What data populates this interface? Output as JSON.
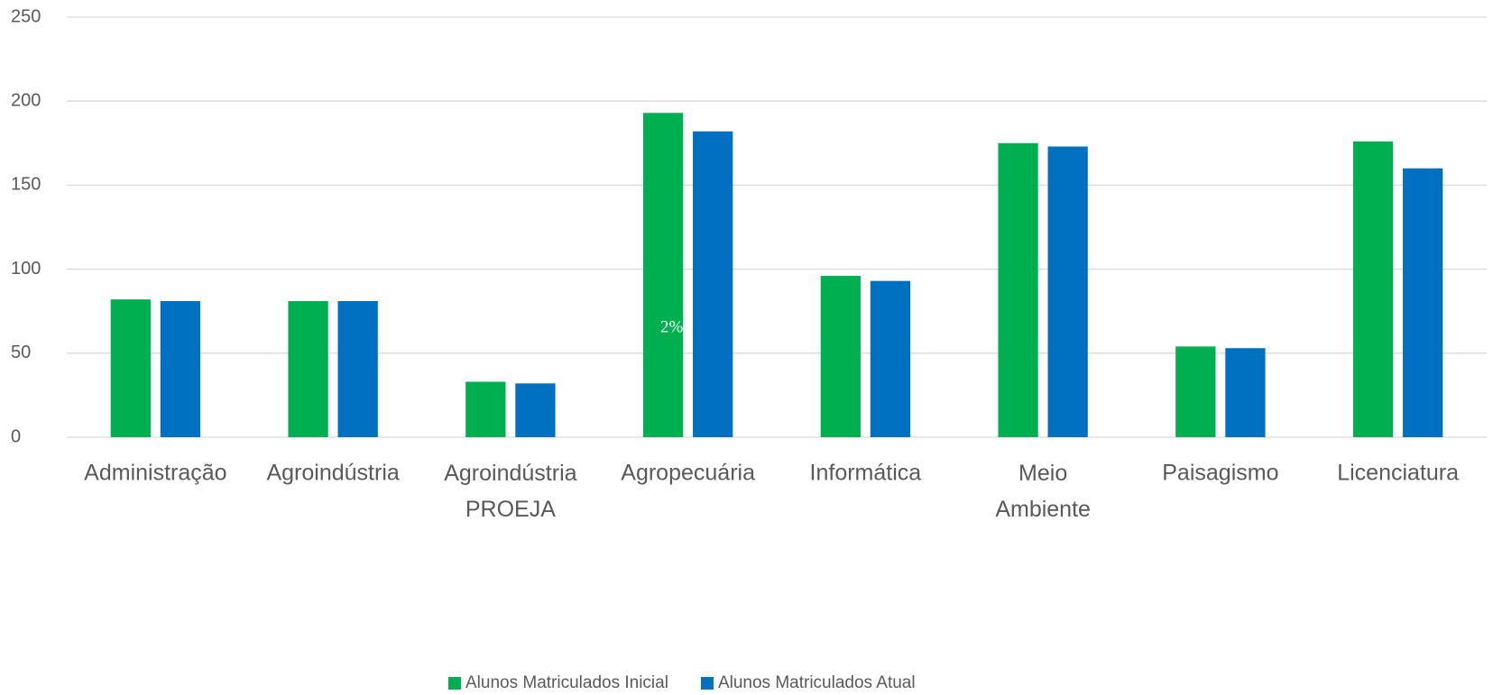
{
  "chart_data": {
    "type": "bar",
    "categories": [
      "Administração",
      "Agroindústria",
      "Agroindústria PROEJA",
      "Agropecuária",
      "Informática",
      "Meio Ambiente",
      "Paisagismo",
      "Licenciatura"
    ],
    "series": [
      {
        "name": "Alunos Matriculados Inicial",
        "color": "#00b050",
        "values": [
          82,
          81,
          33,
          193,
          96,
          175,
          54,
          176
        ]
      },
      {
        "name": "Alunos Matriculados Atual",
        "color": "#0070c0",
        "values": [
          81,
          81,
          32,
          182,
          93,
          173,
          53,
          160
        ]
      }
    ],
    "ylim": [
      0,
      250
    ],
    "yticks": [
      0,
      50,
      100,
      150,
      200,
      250
    ],
    "grid": true,
    "legend": "bottom",
    "annotations": [
      "2%"
    ]
  }
}
